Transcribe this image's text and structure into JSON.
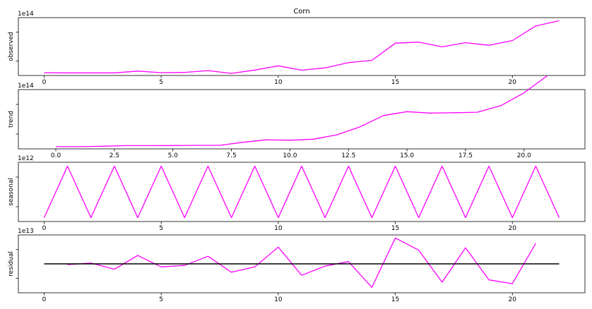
{
  "chart_data": [
    {
      "type": "line",
      "title": "Corn",
      "ylabel": "observed",
      "yexponent": "1e14",
      "x": [
        0,
        1,
        2,
        3,
        4,
        5,
        6,
        7,
        8,
        9,
        10,
        11,
        12,
        13,
        14,
        15,
        16,
        17,
        18,
        19,
        20,
        21,
        22
      ],
      "series": [
        {
          "color": "#ff00ff",
          "values": [
            0.12,
            0.1,
            0.1,
            0.1,
            0.27,
            0.12,
            0.15,
            0.32,
            0.05,
            0.37,
            0.78,
            0.36,
            0.58,
            1.08,
            1.3,
            2.95,
            3.05,
            2.6,
            3.0,
            2.75,
            3.2,
            4.6,
            5.1
          ]
        }
      ],
      "xlim": [
        -1.1,
        23.1
      ],
      "ylim": [
        -0.15,
        5.4
      ],
      "xticks": [
        0,
        5,
        10,
        15,
        20
      ],
      "xtick_labels": [
        "0",
        "5",
        "10",
        "15",
        "20"
      ]
    },
    {
      "type": "line",
      "title": "",
      "ylabel": "trend",
      "yexponent": "1e14",
      "x": [
        0,
        1,
        2,
        3,
        4,
        5,
        6,
        7,
        8,
        9,
        10,
        11,
        12,
        13,
        14,
        15,
        16,
        17,
        18,
        19,
        20,
        21
      ],
      "series": [
        {
          "color": "#ff00ff",
          "values": [
            0.1,
            0.1,
            0.14,
            0.2,
            0.2,
            0.21,
            0.23,
            0.23,
            0.51,
            0.74,
            0.7,
            0.8,
            1.2,
            1.95,
            3.0,
            3.35,
            3.22,
            3.25,
            3.3,
            3.9,
            5.1,
            6.7
          ]
        }
      ],
      "xlim": [
        -1.6,
        22.6
      ],
      "ylim": [
        -0.1,
        5.4
      ],
      "xticks": [
        0,
        2.5,
        5,
        7.5,
        10,
        12.5,
        15,
        17.5,
        20
      ],
      "xtick_labels": [
        "0.0",
        "2.5",
        "5.0",
        "7.5",
        "10.0",
        "12.5",
        "15.0",
        "17.5",
        "20.0"
      ]
    },
    {
      "type": "line",
      "title": "",
      "ylabel": "seasonal",
      "yexponent": "1e12",
      "x": [
        0,
        1,
        2,
        3,
        4,
        5,
        6,
        7,
        8,
        9,
        10,
        11,
        12,
        13,
        14,
        15,
        16,
        17,
        18,
        19,
        20,
        21,
        22
      ],
      "series": [
        {
          "color": "#ff00ff",
          "values": [
            -1,
            1,
            -1,
            1,
            -1,
            1,
            -1,
            1,
            -1,
            1,
            -1,
            1,
            -1,
            1,
            -1,
            1,
            -1,
            1,
            -1,
            1,
            -1,
            1,
            -1
          ]
        }
      ],
      "xlim": [
        -1.1,
        23.1
      ],
      "ylim": [
        -1.15,
        1.15
      ],
      "xticks": [
        0,
        5,
        10,
        15,
        20
      ],
      "xtick_labels": [
        "0",
        "5",
        "10",
        "15",
        "20"
      ]
    },
    {
      "type": "line",
      "title": "",
      "ylabel": "residual",
      "yexponent": "1e13",
      "x": [
        1,
        2,
        3,
        4,
        5,
        6,
        7,
        8,
        9,
        10,
        11,
        12,
        13,
        14,
        15,
        16,
        17,
        18,
        19,
        20,
        21
      ],
      "series": [
        {
          "color": "#ff00ff",
          "values": [
            -0.05,
            0.05,
            -0.35,
            0.55,
            -0.2,
            -0.1,
            0.5,
            -0.55,
            -0.2,
            1.1,
            -0.75,
            -0.15,
            0.15,
            -1.55,
            1.7,
            0.9,
            -1.2,
            1.05,
            -1.05,
            -1.3,
            1.35
          ]
        },
        {
          "color": "#000000",
          "x": [
            0,
            22
          ],
          "values": [
            0,
            0
          ]
        }
      ],
      "xlim": [
        -1.1,
        23.1
      ],
      "ylim": [
        -1.9,
        1.9
      ],
      "xticks": [
        0,
        5,
        10,
        15,
        20
      ],
      "xtick_labels": [
        "0",
        "5",
        "10",
        "15",
        "20"
      ]
    }
  ]
}
